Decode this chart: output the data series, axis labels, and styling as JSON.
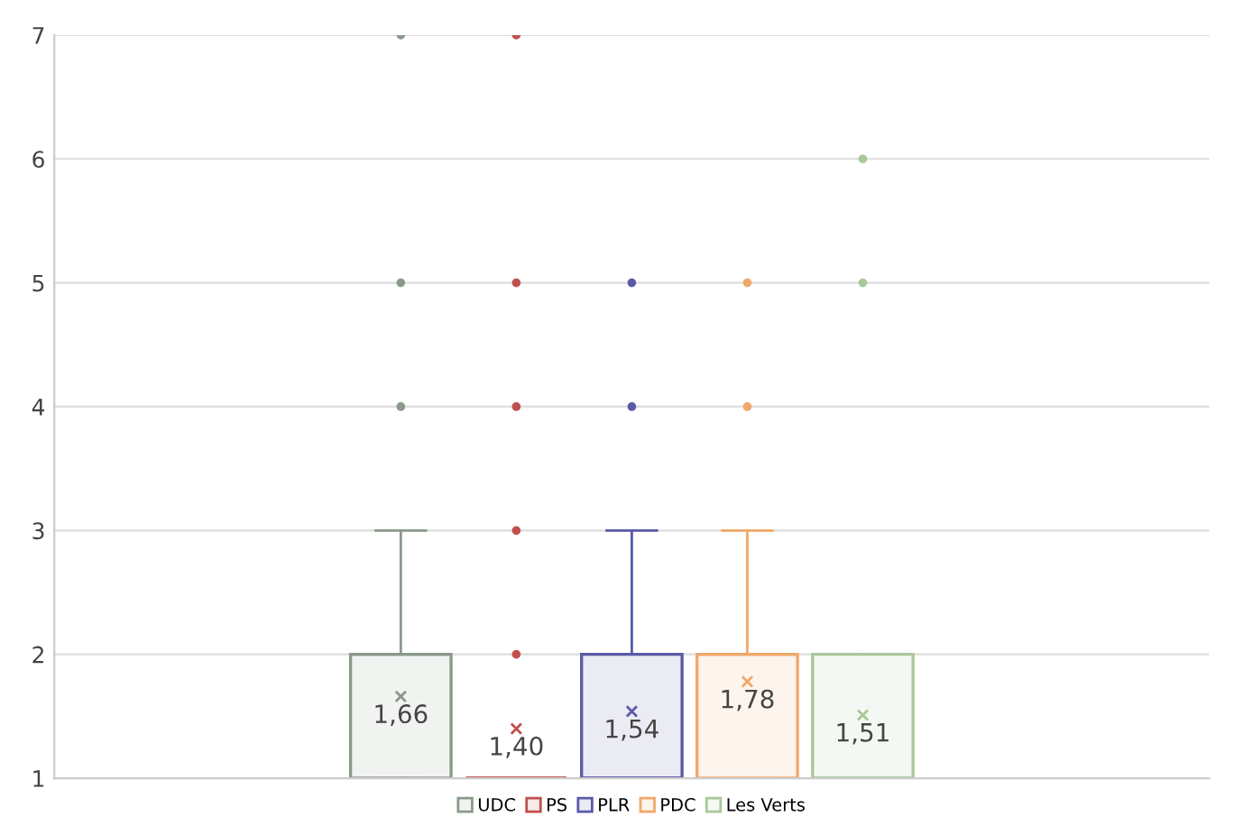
{
  "chart_data": {
    "type": "box",
    "categories": [
      null
    ],
    "series": [
      {
        "name": "UDC",
        "color": "#8a9a8a",
        "boxes": [
          {
            "low": 1,
            "q1": 1,
            "median": 2,
            "q3": 2,
            "high": 3,
            "mean": 1.66,
            "outliers": [
              4,
              5,
              7
            ]
          }
        ],
        "value_labels": [
          "1,66"
        ]
      },
      {
        "name": "PS",
        "color": "#c0504d",
        "boxes": [
          {
            "low": 1,
            "q1": 1,
            "median": 1,
            "q3": 1,
            "high": 1,
            "mean": 1.4,
            "outliers": [
              2,
              3,
              4,
              5,
              7
            ]
          }
        ],
        "value_labels": [
          "1,40"
        ]
      },
      {
        "name": "PLR",
        "color": "#5a5aa8",
        "boxes": [
          {
            "low": 1,
            "q1": 1,
            "median": 1,
            "q3": 2,
            "high": 3,
            "mean": 1.54,
            "outliers": [
              4,
              5
            ]
          }
        ],
        "value_labels": [
          "1,54"
        ]
      },
      {
        "name": "PDC",
        "color": "#f0a868",
        "boxes": [
          {
            "low": 1,
            "q1": 1,
            "median": 2,
            "q3": 2,
            "high": 3,
            "mean": 1.78,
            "outliers": [
              4,
              5
            ]
          }
        ],
        "value_labels": [
          "1,78"
        ]
      },
      {
        "name": "Les Verts",
        "color": "#a8c898",
        "boxes": [
          {
            "low": 1,
            "q1": 1,
            "median": 1,
            "q3": 2,
            "high": 2,
            "mean": 1.51,
            "outliers": [
              5,
              6
            ]
          }
        ],
        "value_labels": [
          "1,51"
        ]
      }
    ],
    "ylim": [
      1,
      7
    ],
    "yticks": [
      1,
      2,
      3,
      4,
      5,
      6,
      7
    ],
    "grid": "y",
    "legend": "bottom"
  }
}
